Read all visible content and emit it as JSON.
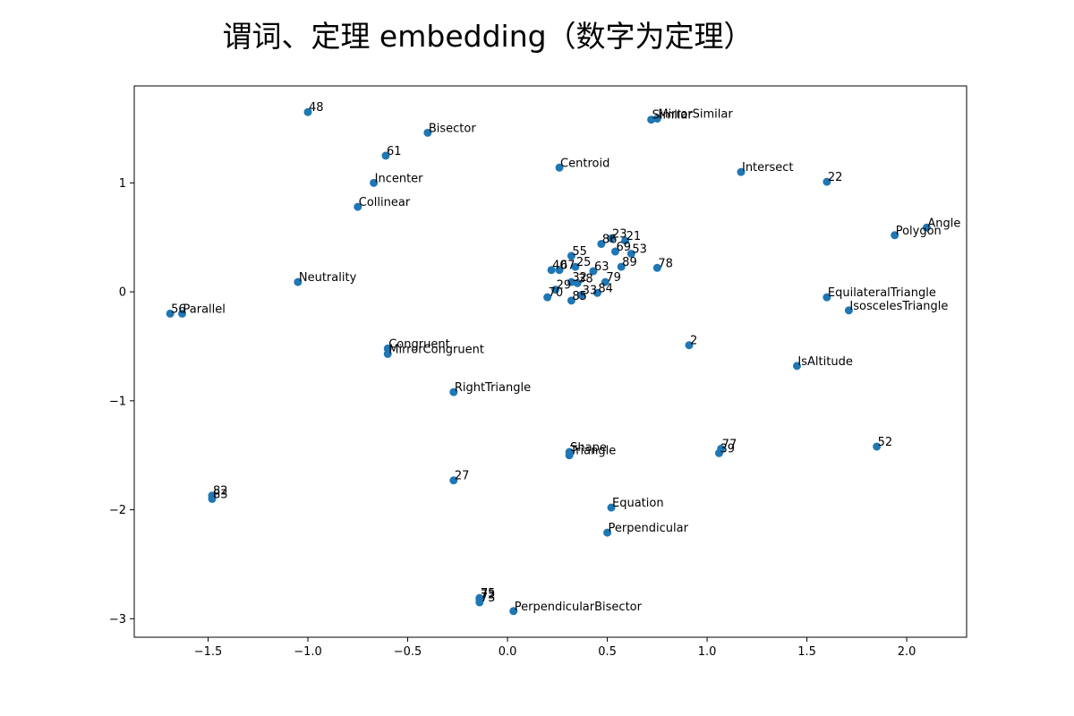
{
  "chart_data": {
    "type": "scatter",
    "title": "谓词、定理 embedding（数字为定理）",
    "xlabel": "",
    "ylabel": "",
    "xlim": [
      -1.87,
      2.3
    ],
    "ylim": [
      -3.17,
      1.89
    ],
    "x_ticks": [
      -1.5,
      -1.0,
      -0.5,
      0.0,
      0.5,
      1.0,
      1.5,
      2.0
    ],
    "x_tick_labels": [
      "−1.5",
      "−1.0",
      "−0.5",
      "0.0",
      "0.5",
      "1.0",
      "1.5",
      "2.0"
    ],
    "y_ticks": [
      1,
      0,
      -1,
      -2,
      -3
    ],
    "y_tick_labels": [
      "1",
      "0",
      "−1",
      "−2",
      "−3"
    ],
    "grid": false,
    "marker_color": "#1f77b4",
    "points": [
      {
        "label": "48",
        "x": -1.0,
        "y": 1.65
      },
      {
        "label": "Bisector",
        "x": -0.4,
        "y": 1.46
      },
      {
        "label": "61",
        "x": -0.61,
        "y": 1.25
      },
      {
        "label": "Incenter",
        "x": -0.67,
        "y": 1.0
      },
      {
        "label": "Collinear",
        "x": -0.75,
        "y": 0.78
      },
      {
        "label": "Neutrality",
        "x": -1.05,
        "y": 0.09
      },
      {
        "label": "56",
        "x": -1.69,
        "y": -0.2
      },
      {
        "label": "Parallel",
        "x": -1.63,
        "y": -0.2
      },
      {
        "label": "Congruent",
        "x": -0.6,
        "y": -0.52
      },
      {
        "label": "MirrorCongruent",
        "x": -0.6,
        "y": -0.57
      },
      {
        "label": "RightTriangle",
        "x": -0.27,
        "y": -0.92
      },
      {
        "label": "27",
        "x": -0.27,
        "y": -1.73
      },
      {
        "label": "82",
        "x": -1.48,
        "y": -1.87
      },
      {
        "label": "83",
        "x": -1.48,
        "y": -1.9
      },
      {
        "label": "75",
        "x": -0.14,
        "y": -2.81
      },
      {
        "label": "72",
        "x": -0.14,
        "y": -2.82
      },
      {
        "label": "73",
        "x": -0.14,
        "y": -2.85
      },
      {
        "label": "PerpendicularBisector",
        "x": 0.03,
        "y": -2.93
      },
      {
        "label": "Centroid",
        "x": 0.26,
        "y": 1.14
      },
      {
        "label": "Similar",
        "x": 0.72,
        "y": 1.58
      },
      {
        "label": "MirrorSimilar",
        "x": 0.75,
        "y": 1.59
      },
      {
        "label": "Intersect",
        "x": 1.17,
        "y": 1.1
      },
      {
        "label": "22",
        "x": 1.6,
        "y": 1.01
      },
      {
        "label": "Angle",
        "x": 2.1,
        "y": 0.59
      },
      {
        "label": "Polygon",
        "x": 1.94,
        "y": 0.52
      },
      {
        "label": "23",
        "x": 0.52,
        "y": 0.49
      },
      {
        "label": "21",
        "x": 0.59,
        "y": 0.47
      },
      {
        "label": "86",
        "x": 0.47,
        "y": 0.44
      },
      {
        "label": "69",
        "x": 0.54,
        "y": 0.37
      },
      {
        "label": "53",
        "x": 0.62,
        "y": 0.35
      },
      {
        "label": "55",
        "x": 0.32,
        "y": 0.33
      },
      {
        "label": "25",
        "x": 0.34,
        "y": 0.23
      },
      {
        "label": "89",
        "x": 0.57,
        "y": 0.23
      },
      {
        "label": "78",
        "x": 0.75,
        "y": 0.22
      },
      {
        "label": "40",
        "x": 0.22,
        "y": 0.2
      },
      {
        "label": "67",
        "x": 0.26,
        "y": 0.2
      },
      {
        "label": "63",
        "x": 0.43,
        "y": 0.19
      },
      {
        "label": "79",
        "x": 0.49,
        "y": 0.09
      },
      {
        "label": "32",
        "x": 0.32,
        "y": 0.09
      },
      {
        "label": "38",
        "x": 0.35,
        "y": 0.08
      },
      {
        "label": "29",
        "x": 0.24,
        "y": 0.02
      },
      {
        "label": "84",
        "x": 0.45,
        "y": -0.01
      },
      {
        "label": "33",
        "x": 0.37,
        "y": -0.03
      },
      {
        "label": "70",
        "x": 0.2,
        "y": -0.05
      },
      {
        "label": "85",
        "x": 0.32,
        "y": -0.08
      },
      {
        "label": "EquilateralTriangle",
        "x": 1.6,
        "y": -0.05
      },
      {
        "label": "IsoscelesTriangle",
        "x": 1.71,
        "y": -0.17
      },
      {
        "label": "2",
        "x": 0.91,
        "y": -0.49
      },
      {
        "label": "IsAltitude",
        "x": 1.45,
        "y": -0.68
      },
      {
        "label": "Shape",
        "x": 0.31,
        "y": -1.47
      },
      {
        "label": "Triangle",
        "x": 0.31,
        "y": -1.5
      },
      {
        "label": "77",
        "x": 1.07,
        "y": -1.44
      },
      {
        "label": "39",
        "x": 1.06,
        "y": -1.48
      },
      {
        "label": "52",
        "x": 1.85,
        "y": -1.42
      },
      {
        "label": "Equation",
        "x": 0.52,
        "y": -1.98
      },
      {
        "label": "Perpendicular",
        "x": 0.5,
        "y": -2.21
      }
    ]
  }
}
